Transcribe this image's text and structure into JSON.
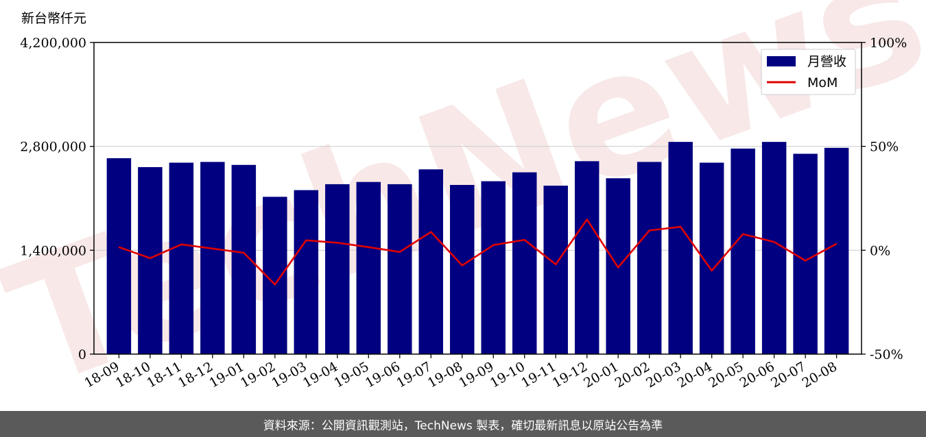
{
  "chart_data": {
    "type": "bar",
    "unit_label": "新台幣仟元",
    "categories": [
      "18-09",
      "18-10",
      "18-11",
      "18-12",
      "19-01",
      "19-02",
      "19-03",
      "19-04",
      "19-05",
      "19-06",
      "19-07",
      "19-08",
      "19-09",
      "19-10",
      "19-11",
      "19-12",
      "20-01",
      "20-02",
      "20-03",
      "20-04",
      "20-05",
      "20-06",
      "20-07",
      "20-08"
    ],
    "series": [
      {
        "name": "月營收",
        "type": "bar",
        "axis": "left",
        "color": "#000080",
        "values": [
          2640000,
          2520000,
          2580000,
          2590000,
          2550000,
          2120000,
          2210000,
          2290000,
          2320000,
          2290000,
          2490000,
          2280000,
          2330000,
          2450000,
          2270000,
          2600000,
          2370000,
          2590000,
          2860000,
          2580000,
          2770000,
          2860000,
          2700000,
          2780000
        ]
      },
      {
        "name": "MoM",
        "type": "line",
        "axis": "right",
        "color": "#e00000",
        "values": [
          1.5,
          -3.8,
          2.8,
          0.8,
          -1.2,
          -16.5,
          4.8,
          3.6,
          1.5,
          -0.8,
          8.8,
          -7.3,
          2.5,
          5.0,
          -6.8,
          14.8,
          -8.3,
          9.5,
          11.3,
          -9.8,
          7.8,
          4.0,
          -5.0,
          3.1
        ]
      }
    ],
    "y_left": {
      "min": 0,
      "max": 4200000,
      "ticks": [
        "0",
        "1,400,000",
        "2,800,000",
        "4,200,000"
      ],
      "tick_values": [
        0,
        1400000,
        2800000,
        4200000
      ]
    },
    "y_right": {
      "min": -50,
      "max": 100,
      "ticks": [
        "-50%",
        "0%",
        "50%",
        "100%"
      ],
      "tick_values": [
        -50,
        0,
        50,
        100
      ]
    },
    "grid": "horizontal",
    "legend": "top-right",
    "watermark": "TechNews"
  },
  "footer": {
    "text": "資料來源：公開資訊觀測站，TechNews 製表，確切最新訊息以原站公告為準"
  }
}
